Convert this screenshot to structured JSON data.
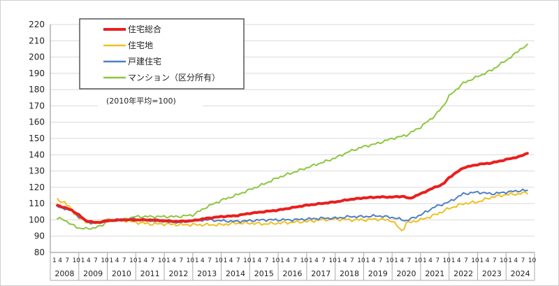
{
  "chart_data": {
    "type": "line",
    "note": "(2010年平均=100)",
    "y_ticks": [
      80,
      90,
      100,
      110,
      120,
      130,
      140,
      150,
      160,
      170,
      180,
      190,
      200,
      210,
      220
    ],
    "ylim": [
      80,
      220
    ],
    "month_labels": [
      "4",
      "7",
      "10"
    ],
    "years": [
      "2008",
      "2009",
      "2010",
      "2011",
      "2012",
      "2013",
      "2014",
      "2015",
      "2016",
      "2017",
      "2018",
      "2019",
      "2020",
      "2021",
      "2022",
      "2023",
      "2024"
    ],
    "grid": "horizontal",
    "legend_position": "top-left",
    "series": [
      {
        "name": "住宅総合",
        "color": "#e8201e",
        "points": [
          [
            2008.25,
            109
          ],
          [
            2008.75,
            106
          ],
          [
            2009.0,
            103
          ],
          [
            2009.25,
            99.5
          ],
          [
            2009.5,
            98.5
          ],
          [
            2009.75,
            98.5
          ],
          [
            2010.0,
            99.5
          ],
          [
            2010.5,
            100
          ],
          [
            2011.0,
            100
          ],
          [
            2011.5,
            100
          ],
          [
            2012.0,
            99.5
          ],
          [
            2012.5,
            99
          ],
          [
            2013.0,
            99.5
          ],
          [
            2013.5,
            101
          ],
          [
            2014.0,
            102
          ],
          [
            2014.5,
            102.5
          ],
          [
            2015.0,
            104
          ],
          [
            2015.5,
            105
          ],
          [
            2016.0,
            106
          ],
          [
            2016.5,
            107.5
          ],
          [
            2017.0,
            109
          ],
          [
            2017.5,
            110
          ],
          [
            2018.0,
            111
          ],
          [
            2018.5,
            112.5
          ],
          [
            2019.0,
            113.5
          ],
          [
            2019.5,
            114
          ],
          [
            2020.0,
            114
          ],
          [
            2020.4,
            114.5
          ],
          [
            2020.6,
            113
          ],
          [
            2021.0,
            116
          ],
          [
            2021.5,
            120
          ],
          [
            2021.8,
            122
          ],
          [
            2022.0,
            126
          ],
          [
            2022.5,
            132
          ],
          [
            2023.0,
            134
          ],
          [
            2023.5,
            135
          ],
          [
            2024.0,
            137
          ],
          [
            2024.5,
            139
          ],
          [
            2024.75,
            141
          ]
        ]
      },
      {
        "name": "住宅地",
        "color": "#f0c020",
        "points": [
          [
            2008.25,
            112
          ],
          [
            2008.5,
            111
          ],
          [
            2008.75,
            106
          ],
          [
            2009.0,
            101
          ],
          [
            2009.25,
            99
          ],
          [
            2009.5,
            98
          ],
          [
            2009.75,
            99
          ],
          [
            2010.0,
            100
          ],
          [
            2010.5,
            100
          ],
          [
            2011.0,
            98.5
          ],
          [
            2011.5,
            97.5
          ],
          [
            2012.0,
            97.5
          ],
          [
            2012.5,
            97
          ],
          [
            2013.0,
            97
          ],
          [
            2013.5,
            97
          ],
          [
            2014.0,
            97
          ],
          [
            2014.5,
            98
          ],
          [
            2015.0,
            98
          ],
          [
            2015.5,
            97.5
          ],
          [
            2016.0,
            98
          ],
          [
            2016.5,
            98.5
          ],
          [
            2017.0,
            99
          ],
          [
            2017.5,
            100
          ],
          [
            2018.0,
            100.5
          ],
          [
            2018.5,
            100
          ],
          [
            2019.0,
            100
          ],
          [
            2019.5,
            100.5
          ],
          [
            2020.0,
            99.5
          ],
          [
            2020.35,
            93
          ],
          [
            2020.5,
            98
          ],
          [
            2021.0,
            100
          ],
          [
            2021.5,
            103
          ],
          [
            2022.0,
            107
          ],
          [
            2022.5,
            110
          ],
          [
            2023.0,
            111
          ],
          [
            2023.5,
            114
          ],
          [
            2024.0,
            115.5
          ],
          [
            2024.5,
            116
          ],
          [
            2024.75,
            117
          ]
        ]
      },
      {
        "name": "戸建住宅",
        "color": "#4f7fc3",
        "points": [
          [
            2008.25,
            108
          ],
          [
            2008.75,
            106
          ],
          [
            2009.0,
            102
          ],
          [
            2009.25,
            99
          ],
          [
            2009.5,
            98
          ],
          [
            2009.75,
            98.5
          ],
          [
            2010.0,
            99.5
          ],
          [
            2010.5,
            100
          ],
          [
            2011.0,
            100.5
          ],
          [
            2011.5,
            99.5
          ],
          [
            2012.0,
            99
          ],
          [
            2012.5,
            98.5
          ],
          [
            2013.0,
            99.5
          ],
          [
            2013.5,
            100
          ],
          [
            2014.0,
            99.5
          ],
          [
            2014.5,
            99
          ],
          [
            2015.0,
            99.5
          ],
          [
            2015.5,
            100
          ],
          [
            2016.0,
            100
          ],
          [
            2016.5,
            100
          ],
          [
            2017.0,
            100.5
          ],
          [
            2017.5,
            101
          ],
          [
            2018.0,
            101
          ],
          [
            2018.5,
            102
          ],
          [
            2019.0,
            102
          ],
          [
            2019.5,
            102.5
          ],
          [
            2020.0,
            101.5
          ],
          [
            2020.5,
            99.5
          ],
          [
            2021.0,
            103
          ],
          [
            2021.5,
            108
          ],
          [
            2022.0,
            111
          ],
          [
            2022.5,
            116
          ],
          [
            2023.0,
            117
          ],
          [
            2023.5,
            116
          ],
          [
            2024.0,
            117
          ],
          [
            2024.5,
            118
          ],
          [
            2024.75,
            118
          ]
        ]
      },
      {
        "name": "マンション（区分所有）",
        "color": "#8dc63f",
        "points": [
          [
            2008.25,
            101
          ],
          [
            2008.5,
            100
          ],
          [
            2008.75,
            97
          ],
          [
            2009.0,
            95
          ],
          [
            2009.25,
            94.5
          ],
          [
            2009.5,
            95
          ],
          [
            2009.75,
            96
          ],
          [
            2010.0,
            99
          ],
          [
            2010.5,
            100
          ],
          [
            2011.0,
            102
          ],
          [
            2011.5,
            102
          ],
          [
            2012.0,
            102
          ],
          [
            2012.5,
            102
          ],
          [
            2013.0,
            103
          ],
          [
            2013.5,
            108
          ],
          [
            2014.0,
            112
          ],
          [
            2014.5,
            115
          ],
          [
            2015.0,
            118.5
          ],
          [
            2015.5,
            122
          ],
          [
            2016.0,
            126
          ],
          [
            2016.5,
            129
          ],
          [
            2017.0,
            132
          ],
          [
            2017.5,
            135
          ],
          [
            2018.0,
            138
          ],
          [
            2018.5,
            142
          ],
          [
            2019.0,
            145
          ],
          [
            2019.5,
            147
          ],
          [
            2020.0,
            150
          ],
          [
            2020.5,
            152
          ],
          [
            2021.0,
            157
          ],
          [
            2021.5,
            164
          ],
          [
            2021.8,
            170
          ],
          [
            2022.0,
            176
          ],
          [
            2022.5,
            184
          ],
          [
            2023.0,
            188
          ],
          [
            2023.5,
            192
          ],
          [
            2024.0,
            198
          ],
          [
            2024.25,
            201
          ],
          [
            2024.5,
            205
          ],
          [
            2024.75,
            207
          ]
        ]
      }
    ]
  }
}
